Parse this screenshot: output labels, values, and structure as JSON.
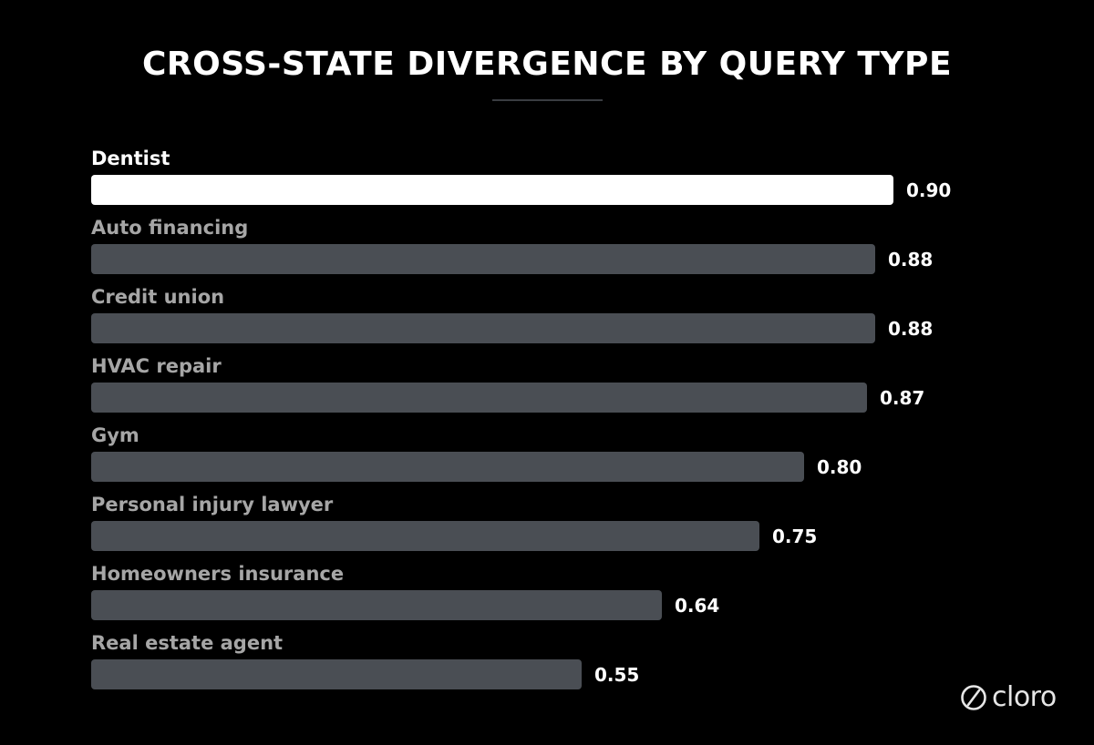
{
  "chart_data": {
    "type": "bar",
    "orientation": "horizontal",
    "title": "CROSS-STATE DIVERGENCE BY QUERY TYPE",
    "categories": [
      "Dentist",
      "Auto financing",
      "Credit union",
      "HVAC repair",
      "Gym",
      "Personal injury lawyer",
      "Homeowners insurance",
      "Real estate agent"
    ],
    "values": [
      0.9,
      0.88,
      0.88,
      0.87,
      0.8,
      0.75,
      0.64,
      0.55
    ],
    "value_labels": [
      "0.90",
      "0.88",
      "0.88",
      "0.87",
      "0.80",
      "0.75",
      "0.64",
      "0.55"
    ],
    "xlim": [
      0,
      0.9
    ],
    "grid": false,
    "legend": "none",
    "highlight_index": 0
  },
  "colors": {
    "background": "#000000",
    "highlight_bar": "#ffffff",
    "default_bar": "#4a4e54",
    "highlight_label": "#ffffff",
    "default_label": "#a6a6a6",
    "value_label": "#ffffff"
  },
  "brand": {
    "name": "cloro",
    "icon": "cloro-logo-icon"
  }
}
